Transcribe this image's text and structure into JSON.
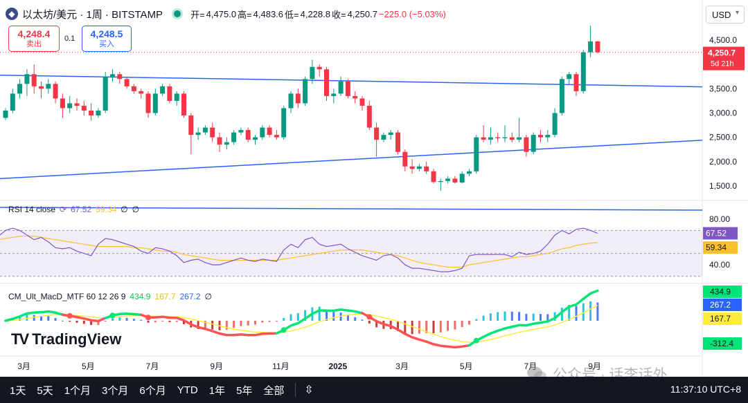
{
  "header": {
    "coin_icon": "ethereum-icon",
    "symbol_title": "以太坊/美元 · 1周 · BITSTAMP",
    "open_label": "开=",
    "open": "4,475.0",
    "high_label": "高=",
    "high": "4,483.6",
    "low_label": "低=",
    "low": "4,228.8",
    "close_label": "收=",
    "close": "4,250.7",
    "change": "−225.0 (−5.03%)",
    "currency": "USD"
  },
  "trade": {
    "sell_price": "4,248.4",
    "sell_label": "卖出",
    "spread": "0.1",
    "buy_price": "4,248.5",
    "buy_label": "买入"
  },
  "price_tag": {
    "price": "4,250.7",
    "countdown": "5d 21h"
  },
  "rsi": {
    "label": "RSI 14 close",
    "value": "67.52",
    "ma": "59.34",
    "extra": "∅"
  },
  "macd": {
    "label": "CM_Ult_MacD_MTF 60 12 26 9",
    "v1": "434.9",
    "v2": "167.7",
    "v3": "267.2",
    "extra": "∅",
    "hist_last": "-312.4"
  },
  "timeframes": [
    "1天",
    "5天",
    "1个月",
    "3个月",
    "6个月",
    "YTD",
    "1年",
    "5年",
    "全部"
  ],
  "clock": "11:37:10 UTC+8",
  "brand": "TradingView",
  "watermark": "公众号 · 话李话外",
  "colors": {
    "up": "#089981",
    "down": "#f23645",
    "trend": "#2962ff",
    "rsi": "#7e57c2",
    "rsi_ma": "#fbc02d",
    "macd_up": "#00e676",
    "macd_down": "#ff5252",
    "signal": "#ffeb3b"
  },
  "chart_data": {
    "type": "candlestick",
    "interval": "1W",
    "ylim": [
      1200,
      4900
    ],
    "y_ticks": [
      1500,
      2000,
      2500,
      3000,
      3500,
      4000,
      4500
    ],
    "y_tick_labels": [
      "1,500.0",
      "2,000.0",
      "2,500.0",
      "3,000.0",
      "3,500.0",
      "4,000.0",
      "4,500.0"
    ],
    "x_ticks": [
      {
        "label": "3月",
        "i": 2
      },
      {
        "label": "5月",
        "i": 11
      },
      {
        "label": "7月",
        "i": 20
      },
      {
        "label": "9月",
        "i": 29
      },
      {
        "label": "11月",
        "i": 38
      },
      {
        "label": "2025",
        "i": 46
      },
      {
        "label": "3月",
        "i": 55
      },
      {
        "label": "5月",
        "i": 64
      },
      {
        "label": "7月",
        "i": 73
      },
      {
        "label": "9月",
        "i": 82
      }
    ],
    "candles": [
      {
        "o": 2900,
        "h": 3100,
        "l": 2850,
        "c": 3050
      },
      {
        "o": 3050,
        "h": 3500,
        "l": 3000,
        "c": 3400
      },
      {
        "o": 3400,
        "h": 3700,
        "l": 3300,
        "c": 3600
      },
      {
        "o": 3600,
        "h": 3900,
        "l": 3350,
        "c": 3800
      },
      {
        "o": 3800,
        "h": 4000,
        "l": 3400,
        "c": 3550
      },
      {
        "o": 3550,
        "h": 3650,
        "l": 3300,
        "c": 3500
      },
      {
        "o": 3500,
        "h": 3700,
        "l": 3400,
        "c": 3600
      },
      {
        "o": 3600,
        "h": 3650,
        "l": 3200,
        "c": 3300
      },
      {
        "o": 3300,
        "h": 3400,
        "l": 2900,
        "c": 3100
      },
      {
        "o": 3100,
        "h": 3350,
        "l": 3000,
        "c": 3200
      },
      {
        "o": 3200,
        "h": 3300,
        "l": 3050,
        "c": 3150
      },
      {
        "o": 3150,
        "h": 3250,
        "l": 2950,
        "c": 3050
      },
      {
        "o": 3050,
        "h": 3200,
        "l": 2850,
        "c": 2950
      },
      {
        "o": 2950,
        "h": 3100,
        "l": 2900,
        "c": 3050
      },
      {
        "o": 3050,
        "h": 3850,
        "l": 3000,
        "c": 3750
      },
      {
        "o": 3750,
        "h": 3900,
        "l": 3650,
        "c": 3800
      },
      {
        "o": 3800,
        "h": 3850,
        "l": 3600,
        "c": 3700
      },
      {
        "o": 3700,
        "h": 3750,
        "l": 3500,
        "c": 3550
      },
      {
        "o": 3550,
        "h": 3600,
        "l": 3400,
        "c": 3450
      },
      {
        "o": 3450,
        "h": 3500,
        "l": 3300,
        "c": 3400
      },
      {
        "o": 3400,
        "h": 3450,
        "l": 2900,
        "c": 3000
      },
      {
        "o": 3000,
        "h": 3500,
        "l": 2950,
        "c": 3400
      },
      {
        "o": 3400,
        "h": 3600,
        "l": 3350,
        "c": 3550
      },
      {
        "o": 3550,
        "h": 3600,
        "l": 3200,
        "c": 3250
      },
      {
        "o": 3250,
        "h": 3450,
        "l": 3150,
        "c": 3400
      },
      {
        "o": 3400,
        "h": 3450,
        "l": 2900,
        "c": 2950
      },
      {
        "o": 2950,
        "h": 3000,
        "l": 2150,
        "c": 2550
      },
      {
        "o": 2550,
        "h": 2700,
        "l": 2450,
        "c": 2600
      },
      {
        "o": 2600,
        "h": 2750,
        "l": 2550,
        "c": 2700
      },
      {
        "o": 2700,
        "h": 2800,
        "l": 2400,
        "c": 2500
      },
      {
        "o": 2500,
        "h": 2600,
        "l": 2200,
        "c": 2350
      },
      {
        "o": 2350,
        "h": 2500,
        "l": 2250,
        "c": 2400
      },
      {
        "o": 2400,
        "h": 2650,
        "l": 2350,
        "c": 2600
      },
      {
        "o": 2600,
        "h": 2700,
        "l": 2550,
        "c": 2650
      },
      {
        "o": 2650,
        "h": 2700,
        "l": 2400,
        "c": 2450
      },
      {
        "o": 2450,
        "h": 2550,
        "l": 2350,
        "c": 2500
      },
      {
        "o": 2500,
        "h": 2750,
        "l": 2450,
        "c": 2700
      },
      {
        "o": 2700,
        "h": 2750,
        "l": 2500,
        "c": 2550
      },
      {
        "o": 2550,
        "h": 2650,
        "l": 2450,
        "c": 2500
      },
      {
        "o": 2500,
        "h": 3150,
        "l": 2450,
        "c": 3100
      },
      {
        "o": 3100,
        "h": 3450,
        "l": 3000,
        "c": 3400
      },
      {
        "o": 3400,
        "h": 3500,
        "l": 3100,
        "c": 3200
      },
      {
        "o": 3200,
        "h": 3750,
        "l": 3150,
        "c": 3700
      },
      {
        "o": 3700,
        "h": 4100,
        "l": 3600,
        "c": 3950
      },
      {
        "o": 3950,
        "h": 4000,
        "l": 3750,
        "c": 3900
      },
      {
        "o": 3900,
        "h": 3950,
        "l": 3250,
        "c": 3350
      },
      {
        "o": 3350,
        "h": 3500,
        "l": 3200,
        "c": 3400
      },
      {
        "o": 3400,
        "h": 3750,
        "l": 3350,
        "c": 3650
      },
      {
        "o": 3650,
        "h": 3700,
        "l": 3300,
        "c": 3350
      },
      {
        "o": 3350,
        "h": 3450,
        "l": 3200,
        "c": 3300
      },
      {
        "o": 3300,
        "h": 3350,
        "l": 3050,
        "c": 3150
      },
      {
        "o": 3150,
        "h": 3250,
        "l": 2650,
        "c": 2700
      },
      {
        "o": 2700,
        "h": 2800,
        "l": 2100,
        "c": 2450
      },
      {
        "o": 2450,
        "h": 2600,
        "l": 2400,
        "c": 2550
      },
      {
        "o": 2550,
        "h": 2650,
        "l": 2450,
        "c": 2600
      },
      {
        "o": 2600,
        "h": 2650,
        "l": 2150,
        "c": 2200
      },
      {
        "o": 2200,
        "h": 2250,
        "l": 1800,
        "c": 1900
      },
      {
        "o": 1900,
        "h": 2050,
        "l": 1750,
        "c": 1850
      },
      {
        "o": 1850,
        "h": 1950,
        "l": 1800,
        "c": 1900
      },
      {
        "o": 1900,
        "h": 2000,
        "l": 1750,
        "c": 1800
      },
      {
        "o": 1800,
        "h": 1850,
        "l": 1550,
        "c": 1580
      },
      {
        "o": 1580,
        "h": 1650,
        "l": 1400,
        "c": 1600
      },
      {
        "o": 1600,
        "h": 1700,
        "l": 1550,
        "c": 1650
      },
      {
        "o": 1650,
        "h": 1700,
        "l": 1550,
        "c": 1570
      },
      {
        "o": 1570,
        "h": 1800,
        "l": 1550,
        "c": 1750
      },
      {
        "o": 1750,
        "h": 1850,
        "l": 1700,
        "c": 1800
      },
      {
        "o": 1800,
        "h": 2550,
        "l": 1750,
        "c": 2500
      },
      {
        "o": 2500,
        "h": 2750,
        "l": 2400,
        "c": 2450
      },
      {
        "o": 2450,
        "h": 2700,
        "l": 2350,
        "c": 2500
      },
      {
        "o": 2500,
        "h": 2600,
        "l": 2400,
        "c": 2480
      },
      {
        "o": 2480,
        "h": 2750,
        "l": 2400,
        "c": 2500
      },
      {
        "o": 2500,
        "h": 2600,
        "l": 2400,
        "c": 2450
      },
      {
        "o": 2450,
        "h": 2900,
        "l": 2400,
        "c": 2500
      },
      {
        "o": 2500,
        "h": 2550,
        "l": 2100,
        "c": 2200
      },
      {
        "o": 2200,
        "h": 2600,
        "l": 2150,
        "c": 2550
      },
      {
        "o": 2550,
        "h": 2650,
        "l": 2400,
        "c": 2500
      },
      {
        "o": 2500,
        "h": 2650,
        "l": 2400,
        "c": 2550
      },
      {
        "o": 2550,
        "h": 3100,
        "l": 2500,
        "c": 3000
      },
      {
        "o": 3000,
        "h": 3750,
        "l": 2950,
        "c": 3700
      },
      {
        "o": 3700,
        "h": 3850,
        "l": 3600,
        "c": 3800
      },
      {
        "o": 3800,
        "h": 3850,
        "l": 3350,
        "c": 3450
      },
      {
        "o": 3450,
        "h": 4300,
        "l": 3400,
        "c": 4250
      },
      {
        "o": 4250,
        "h": 4800,
        "l": 4150,
        "c": 4475
      },
      {
        "o": 4475,
        "h": 4483.6,
        "l": 4228.8,
        "c": 4250.7
      }
    ],
    "trendlines": [
      {
        "from": {
          "i": 0,
          "v": 3780
        },
        "to": {
          "i": 101,
          "v": 3540
        }
      },
      {
        "from": {
          "i": 0,
          "v": 1650
        },
        "to": {
          "i": 101,
          "v": 2440
        }
      }
    ]
  },
  "rsi_data": {
    "ylim": [
      25,
      95
    ],
    "ticks": [
      80,
      40
    ],
    "tick_labels": [
      "80.00",
      "40.00"
    ],
    "levels": [
      70,
      50,
      30
    ],
    "rsi": [
      65,
      70,
      72,
      70,
      66,
      62,
      64,
      60,
      55,
      54,
      55,
      52,
      50,
      48,
      58,
      63,
      62,
      60,
      58,
      56,
      52,
      50,
      55,
      54,
      52,
      48,
      42,
      44,
      45,
      42,
      40,
      40,
      42,
      44,
      46,
      44,
      43,
      45,
      44,
      43,
      53,
      58,
      55,
      62,
      64,
      58,
      56,
      57,
      58,
      54,
      51,
      48,
      46,
      44,
      48,
      49,
      46,
      40,
      37,
      37,
      36,
      35,
      34,
      34,
      35,
      37,
      48,
      49,
      49,
      49,
      49,
      49,
      47,
      51,
      49,
      50,
      52,
      58,
      66,
      70,
      67,
      71,
      72,
      70,
      67.52
    ],
    "ma": [
      62,
      63,
      64,
      65,
      65,
      65,
      64,
      63,
      62,
      61,
      60,
      59,
      58,
      57,
      56,
      56,
      56,
      56,
      56,
      55,
      55,
      54,
      53,
      52,
      52,
      51,
      49,
      48,
      47,
      46,
      45,
      44,
      44,
      44,
      44,
      44,
      44,
      44,
      44,
      44,
      45,
      46,
      47,
      48,
      49,
      50,
      51,
      52,
      53,
      53,
      53,
      53,
      52,
      51,
      50,
      49,
      48,
      46,
      44,
      42,
      41,
      40,
      39,
      38,
      38,
      38,
      40,
      41,
      42,
      43,
      44,
      45,
      46,
      47,
      47,
      48,
      49,
      50,
      52,
      54,
      55,
      57,
      58,
      59,
      59.34
    ]
  }
}
